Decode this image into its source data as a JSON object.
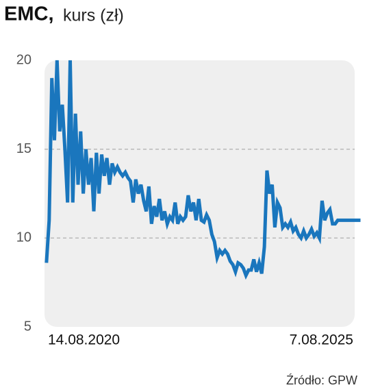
{
  "chart_data": {
    "type": "line",
    "title": "EMC,",
    "subtitle": "kurs (zł)",
    "source": "Źródło: GPW",
    "categories": [
      "14.08.2020",
      null,
      null,
      null,
      null,
      null,
      null,
      null,
      null,
      null,
      null,
      null,
      null,
      null,
      null,
      null,
      null,
      null,
      null,
      null,
      null,
      null,
      null,
      null,
      null,
      null,
      null,
      null,
      null,
      null,
      null,
      null,
      null,
      null,
      null,
      null,
      null,
      null,
      null,
      null,
      null,
      null,
      null,
      null,
      null,
      null,
      null,
      null,
      null,
      null,
      null,
      null,
      null,
      null,
      null,
      null,
      null,
      null,
      null,
      null,
      null,
      null,
      null,
      null,
      null,
      null,
      null,
      null,
      null,
      null,
      null,
      null,
      null,
      null,
      null,
      null,
      null,
      null,
      null,
      null,
      null,
      null,
      null,
      null,
      null,
      null,
      null,
      null,
      null,
      null,
      null,
      null,
      null,
      null,
      null,
      null,
      null,
      null,
      null,
      null,
      null,
      null,
      null,
      null,
      null,
      null,
      null,
      null,
      null,
      null,
      null,
      null,
      null,
      null,
      null,
      null,
      null,
      null,
      null,
      "7.08.2025"
    ],
    "values": [
      8.7,
      11,
      19,
      15.5,
      20,
      16,
      17.5,
      15,
      12,
      20,
      12,
      17,
      13,
      16,
      12.5,
      15,
      13,
      14.5,
      11.5,
      14.8,
      12.5,
      14.7,
      13.5,
      14.5,
      13,
      14.2,
      13.7,
      14,
      13.7,
      13.5,
      13.7,
      13.4,
      13.2,
      12,
      13.3,
      12.5,
      13,
      12.1,
      11.5,
      12.9,
      10.8,
      11.8,
      11.2,
      12.2,
      11,
      11.5,
      10.8,
      11.2,
      11,
      12,
      10.8,
      11.2,
      11,
      11.2,
      12.4,
      11.5,
      12,
      11,
      12.2,
      11,
      10.9,
      11.3,
      11,
      10.2,
      9.8,
      8.9,
      9.3,
      9.1,
      9.3,
      9.1,
      8.7,
      8.5,
      8.1,
      8.6,
      8.5,
      8.3,
      7.9,
      8.2,
      8.2,
      8.8,
      8.1,
      8.6,
      8,
      9.5,
      13.8,
      12.5,
      13,
      10.6,
      12,
      11.7,
      10.6,
      10.8,
      10.6,
      10.9,
      10.4,
      10.6,
      10.2,
      10,
      10.4,
      10,
      10.2,
      10.5,
      10.1,
      10.3,
      10,
      12.1,
      11,
      11.4,
      11.6,
      10.8,
      10.8,
      11,
      11,
      11,
      11,
      11,
      11,
      11,
      11,
      11
    ],
    "color": "#1a76bd",
    "ylim": [
      5,
      20
    ],
    "yticks": [
      5,
      10,
      15,
      20
    ],
    "grid": true
  }
}
